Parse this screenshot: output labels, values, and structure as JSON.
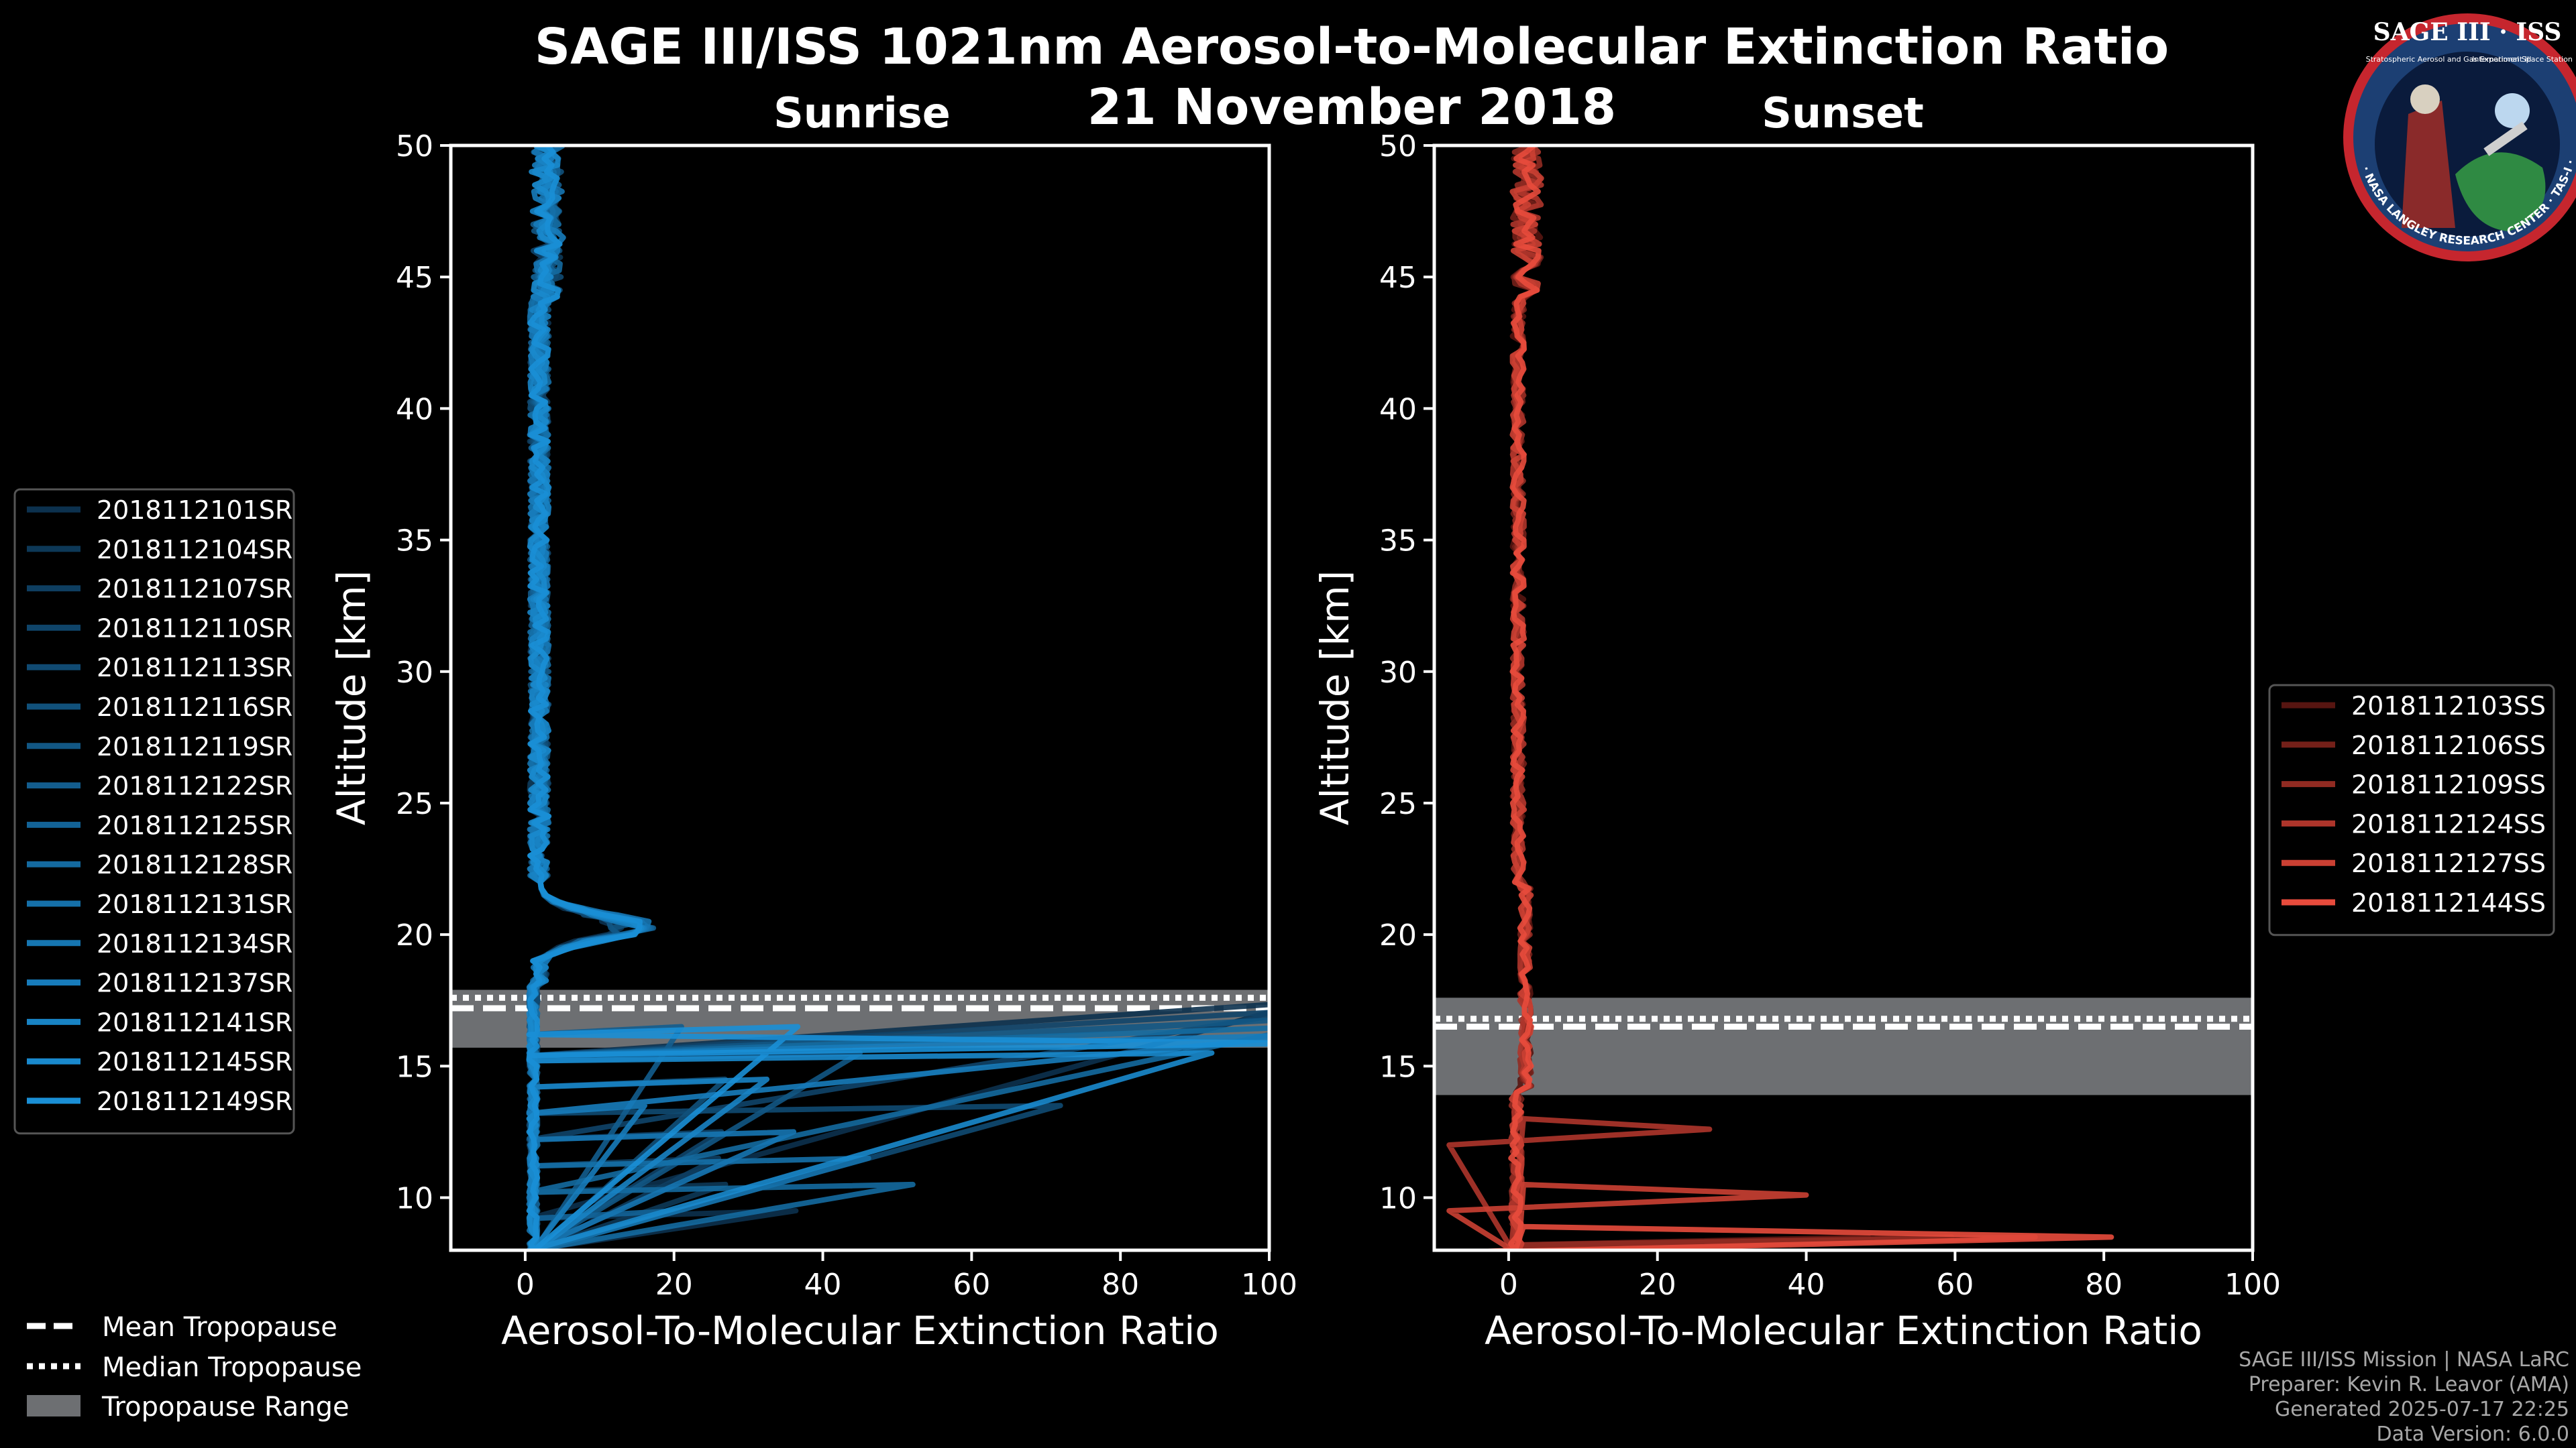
{
  "header": {
    "title_line1": "SAGE III/ISS 1021nm Aerosol-to-Molecular Extinction Ratio",
    "title_line2": "21 November 2018"
  },
  "logo": {
    "label": "SAGE III · ISS",
    "sub1": "Stratospheric Aerosol and Gas Experiment III",
    "sub2": "International Space Station",
    "ring": "BALL · NASA LANGLEY RESEARCH CENTER · TAS-I · ESA"
  },
  "footer": {
    "line1": "SAGE III/ISS Mission | NASA LaRC",
    "line2": "Preparer: Kevin R. Leavor (AMA)",
    "line3": "Generated 2025-07-17 22:25",
    "line4": "Data Version: 6.0.0"
  },
  "legend_bottom": {
    "mean": "Mean Tropopause",
    "median": "Median Tropopause",
    "range": "Tropopause Range"
  },
  "colors": {
    "background": "#000000",
    "sunrise": "#1a8fd6",
    "sunset": "#e84b3c",
    "tropo": "#6d6f72"
  },
  "chart_data": [
    {
      "type": "line",
      "title": "Sunrise",
      "xlabel": "Aerosol-To-Molecular Extinction Ratio",
      "ylabel": "Altitude [km]",
      "xlim": [
        -10,
        100
      ],
      "ylim": [
        8,
        50
      ],
      "xticks": [
        0,
        20,
        40,
        60,
        80,
        100
      ],
      "yticks": [
        10,
        15,
        20,
        25,
        30,
        35,
        40,
        45,
        50
      ],
      "legend_position": "left",
      "series": [
        {
          "name": "2018112101SR"
        },
        {
          "name": "2018112104SR"
        },
        {
          "name": "2018112107SR"
        },
        {
          "name": "2018112110SR"
        },
        {
          "name": "2018112113SR"
        },
        {
          "name": "2018112116SR"
        },
        {
          "name": "2018112119SR"
        },
        {
          "name": "2018112122SR"
        },
        {
          "name": "2018112125SR"
        },
        {
          "name": "2018112128SR"
        },
        {
          "name": "2018112131SR"
        },
        {
          "name": "2018112134SR"
        },
        {
          "name": "2018112137SR"
        },
        {
          "name": "2018112141SR"
        },
        {
          "name": "2018112145SR"
        },
        {
          "name": "2018112149SR"
        }
      ],
      "tropopause": {
        "mean": 17.2,
        "median": 17.6,
        "range": [
          15.7,
          17.9
        ]
      },
      "approx_profile": {
        "typical_ratio_above_25km": 1.5,
        "peak_layer_km": 20.2,
        "peak_ratio": 13,
        "near_tropopause_spikes_max_ratio": 100,
        "low_altitude_spike_ratios": [
          48,
          45,
          25,
          30,
          100
        ]
      }
    },
    {
      "type": "line",
      "title": "Sunset",
      "xlabel": "Aerosol-To-Molecular Extinction Ratio",
      "ylabel": "Altitude [km]",
      "xlim": [
        -10,
        100
      ],
      "ylim": [
        8,
        50
      ],
      "xticks": [
        0,
        20,
        40,
        60,
        80,
        100
      ],
      "yticks": [
        10,
        15,
        20,
        25,
        30,
        35,
        40,
        45,
        50
      ],
      "legend_position": "right",
      "series": [
        {
          "name": "2018112103SS"
        },
        {
          "name": "2018112106SS"
        },
        {
          "name": "2018112109SS"
        },
        {
          "name": "2018112124SS"
        },
        {
          "name": "2018112127SS"
        },
        {
          "name": "2018112144SS"
        }
      ],
      "tropopause": {
        "mean": 16.5,
        "median": 16.8,
        "range": [
          13.9,
          17.6
        ]
      },
      "approx_profile": {
        "typical_ratio_above_20km": 1.5,
        "spike_ratios": [
          27,
          40,
          81
        ],
        "spike_altitudes_km": [
          12.6,
          10.1,
          8.5
        ]
      }
    }
  ]
}
